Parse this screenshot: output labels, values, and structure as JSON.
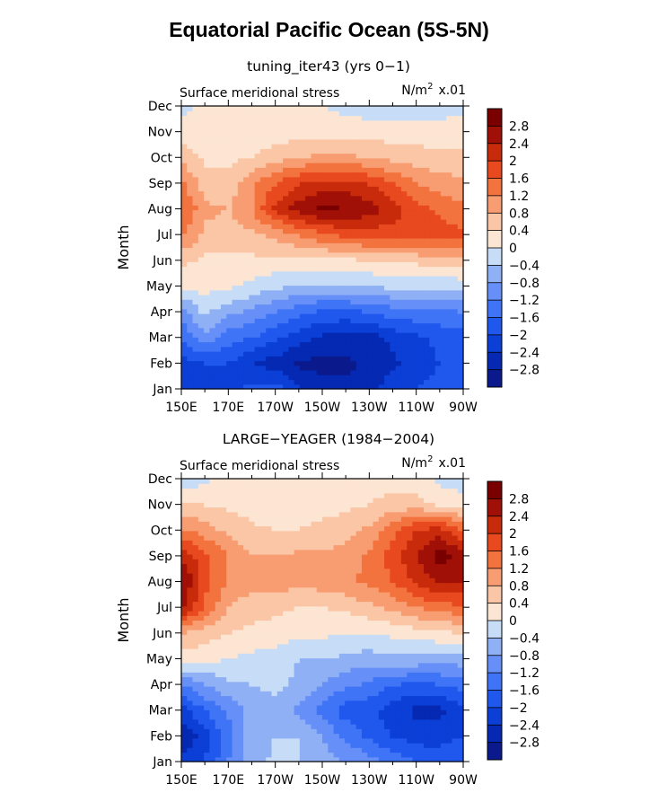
{
  "figure_title": "Equatorial Pacific Ocean (5S-5N)",
  "chart_data": [
    {
      "type": "heatmap",
      "title": "tuning_iter43 (yrs 0−1)",
      "left_label": "Surface meridional stress",
      "units": "N/m",
      "units_power": "2",
      "units_scale": "x.01",
      "ylabel": "Month",
      "xlabel": "",
      "x_ticks": [
        "150E",
        "170E",
        "170W",
        "150W",
        "130W",
        "110W",
        "90W"
      ],
      "x_lon": [
        150,
        170,
        190,
        210,
        230,
        250,
        270
      ],
      "xlim": [
        150,
        270
      ],
      "y_ticks": [
        "Jan",
        "Feb",
        "Mar",
        "Apr",
        "May",
        "Jun",
        "Jul",
        "Aug",
        "Sep",
        "Oct",
        "Nov",
        "Dec"
      ],
      "z": [
        [
          -2.0,
          -2.2,
          -2.1,
          -1.9,
          -1.8,
          -2.3,
          -2.7,
          -2.7,
          -2.5,
          -2.2,
          -2.0,
          -1.9,
          -1.8
        ],
        [
          -2.2,
          -2.0,
          -2.0,
          -2.4,
          -2.6,
          -2.9,
          -2.9,
          -2.9,
          -2.7,
          -2.5,
          -2.2,
          -2.0,
          -1.9
        ],
        [
          -1.6,
          -0.9,
          -1.4,
          -1.6,
          -1.9,
          -2.2,
          -2.5,
          -2.6,
          -2.6,
          -2.3,
          -2.1,
          -1.9,
          -1.8
        ],
        [
          -1.0,
          -0.3,
          -0.7,
          -0.9,
          -1.2,
          -1.5,
          -1.7,
          -1.7,
          -1.6,
          -1.4,
          -1.3,
          -1.3,
          -1.2
        ],
        [
          0.1,
          0.15,
          0.1,
          -0.1,
          -0.3,
          -0.4,
          -0.5,
          -0.5,
          -0.4,
          -0.3,
          -0.3,
          -0.3,
          -0.3
        ],
        [
          0.5,
          0.3,
          0.3,
          0.3,
          0.3,
          0.3,
          0.3,
          0.3,
          0.4,
          0.4,
          0.5,
          0.6,
          0.7
        ],
        [
          1.3,
          0.7,
          0.6,
          0.7,
          0.9,
          1.2,
          1.5,
          1.7,
          1.8,
          1.8,
          1.8,
          1.8,
          1.7
        ],
        [
          1.7,
          0.9,
          0.8,
          1.2,
          2.1,
          2.6,
          2.9,
          2.8,
          2.6,
          2.2,
          1.8,
          1.5,
          1.3
        ],
        [
          1.3,
          0.6,
          0.5,
          1.1,
          1.6,
          2.0,
          2.2,
          2.2,
          2.0,
          1.6,
          1.2,
          1.0,
          0.9
        ],
        [
          0.7,
          0.3,
          0.3,
          0.4,
          0.6,
          0.8,
          0.9,
          0.9,
          0.8,
          0.7,
          0.6,
          0.5,
          0.5
        ],
        [
          0.2,
          0.15,
          0.3,
          0.2,
          0.2,
          0.2,
          0.2,
          0.2,
          0.2,
          0.2,
          0.2,
          0.2,
          0.2
        ],
        [
          -0.1,
          0.1,
          0.1,
          0.1,
          0.1,
          0.0,
          0.0,
          -0.1,
          -0.2,
          -0.2,
          -0.2,
          -0.2,
          -0.1
        ]
      ]
    },
    {
      "type": "heatmap",
      "title": "LARGE−YEAGER (1984−2004)",
      "left_label": "Surface meridional stress",
      "units": "N/m",
      "units_power": "2",
      "units_scale": "x.01",
      "ylabel": "Month",
      "xlabel": "",
      "x_ticks": [
        "150E",
        "170E",
        "170W",
        "150W",
        "130W",
        "110W",
        "90W"
      ],
      "x_lon": [
        150,
        170,
        190,
        210,
        230,
        250,
        270
      ],
      "xlim": [
        150,
        270
      ],
      "y_ticks": [
        "Jan",
        "Feb",
        "Mar",
        "Apr",
        "May",
        "Jun",
        "Jul",
        "Aug",
        "Sep",
        "Oct",
        "Nov",
        "Dec"
      ],
      "z": [
        [
          -2.2,
          -2.0,
          -1.2,
          -0.6,
          -0.3,
          -0.4,
          -0.6,
          -0.8,
          -1.0,
          -1.3,
          -1.6,
          -1.7,
          -1.6
        ],
        [
          -2.8,
          -2.2,
          -1.4,
          -0.6,
          -0.4,
          -0.4,
          -0.8,
          -1.3,
          -1.7,
          -2.0,
          -2.2,
          -2.2,
          -2.0
        ],
        [
          -2.2,
          -1.6,
          -1.1,
          -0.7,
          -0.5,
          -0.9,
          -1.4,
          -1.8,
          -1.9,
          -2.2,
          -2.5,
          -2.5,
          -2.2
        ],
        [
          -1.2,
          -0.8,
          -0.5,
          -0.4,
          -0.3,
          -0.5,
          -0.8,
          -1.1,
          -1.3,
          -1.6,
          -1.7,
          -1.6,
          -1.4
        ],
        [
          0.2,
          0.1,
          0.0,
          -0.1,
          -0.2,
          -0.4,
          -0.4,
          -0.5,
          -0.6,
          -0.5,
          -0.5,
          -0.6,
          -0.6
        ],
        [
          0.8,
          0.6,
          0.4,
          0.3,
          0.2,
          0.1,
          0.1,
          0.0,
          0.0,
          0.1,
          0.2,
          0.3,
          0.4
        ],
        [
          2.5,
          1.5,
          0.8,
          0.6,
          0.5,
          0.4,
          0.4,
          0.5,
          0.7,
          0.9,
          1.2,
          1.4,
          1.5
        ],
        [
          2.9,
          1.8,
          1.1,
          0.9,
          1.0,
          0.9,
          1.0,
          1.1,
          1.3,
          1.6,
          2.1,
          2.5,
          2.4
        ],
        [
          2.3,
          1.7,
          1.2,
          0.8,
          0.8,
          0.9,
          0.9,
          1.0,
          1.3,
          1.8,
          2.4,
          3.0,
          2.6
        ],
        [
          1.3,
          1.0,
          0.7,
          0.5,
          0.4,
          0.4,
          0.5,
          0.6,
          0.9,
          1.5,
          2.0,
          2.2,
          1.6
        ],
        [
          0.4,
          0.4,
          0.3,
          0.2,
          0.1,
          0.2,
          0.3,
          0.3,
          0.4,
          0.5,
          0.6,
          0.3,
          0.2
        ],
        [
          -0.3,
          -0.1,
          0.1,
          0.1,
          0.1,
          0.1,
          0.2,
          0.3,
          0.3,
          0.3,
          0.2,
          -0.1,
          -0.2
        ]
      ]
    }
  ],
  "colorbar": {
    "levels": [
      -2.8,
      -2.4,
      -2.0,
      -1.6,
      -1.2,
      -0.8,
      -0.4,
      0,
      0.4,
      0.8,
      1.2,
      1.6,
      2.0,
      2.4,
      2.8
    ],
    "labels": [
      "2.8",
      "2.4",
      "2",
      "1.6",
      "1.2",
      "0.8",
      "0.4",
      "0",
      "−0.4",
      "−0.8",
      "−1.2",
      "−1.6",
      "−2",
      "−2.4",
      "−2.8"
    ],
    "colors": [
      "#0a1a8c",
      "#0529b2",
      "#0b3fd6",
      "#2058ee",
      "#3f74f6",
      "#6690f7",
      "#8fb0f5",
      "#c6dcf7",
      "#fde5d3",
      "#fbc6a6",
      "#f89d72",
      "#f3733f",
      "#e8491e",
      "#c82b0b",
      "#a01006",
      "#7a0000"
    ]
  }
}
